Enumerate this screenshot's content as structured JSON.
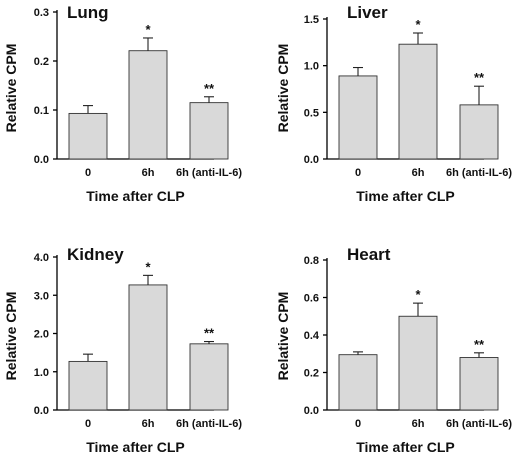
{
  "chart_data": [
    {
      "type": "bar",
      "title": "Lung",
      "xlabel": "Time after CLP",
      "ylabel": "Relative CPM",
      "categories": [
        "0",
        "6h",
        "6h (anti-IL-6)"
      ],
      "values": [
        0.093,
        0.221,
        0.115
      ],
      "errors": [
        0.016,
        0.026,
        0.012
      ],
      "annotations": [
        "",
        "*",
        "**"
      ],
      "ylim": [
        0,
        0.3
      ],
      "yticks": [
        0,
        0.1,
        0.2,
        0.3
      ],
      "ytick_labels": [
        "0.0",
        "0.1",
        "0.2",
        "0.3"
      ],
      "grid": false
    },
    {
      "type": "bar",
      "title": "Liver",
      "xlabel": "Time after CLP",
      "ylabel": "Relative CPM",
      "categories": [
        "0",
        "6h",
        "6h (anti-IL-6)"
      ],
      "values": [
        0.89,
        1.23,
        0.58
      ],
      "errors": [
        0.09,
        0.12,
        0.2
      ],
      "annotations": [
        "",
        "*",
        "**"
      ],
      "ylim": [
        0,
        1.5
      ],
      "yticks": [
        0,
        0.5,
        1.0,
        1.5
      ],
      "ytick_labels": [
        "0.0",
        "0.5",
        "1.0",
        "1.5"
      ],
      "grid": false
    },
    {
      "type": "bar",
      "title": "Kidney",
      "xlabel": "Time after CLP",
      "ylabel": "Relative CPM",
      "categories": [
        "0",
        "6h",
        "6h (anti-IL-6)"
      ],
      "values": [
        1.27,
        3.27,
        1.73
      ],
      "errors": [
        0.19,
        0.25,
        0.06
      ],
      "annotations": [
        "",
        "*",
        "**"
      ],
      "ylim": [
        0,
        4.0
      ],
      "yticks": [
        0,
        1.0,
        2.0,
        3.0,
        4.0
      ],
      "ytick_labels": [
        "0.0",
        "1.0",
        "2.0",
        "3.0",
        "4.0"
      ],
      "grid": false
    },
    {
      "type": "bar",
      "title": "Heart",
      "xlabel": "Time after CLP",
      "ylabel": "Relative CPM",
      "categories": [
        "0",
        "6h",
        "6h (anti-IL-6)"
      ],
      "values": [
        0.295,
        0.5,
        0.28
      ],
      "errors": [
        0.015,
        0.07,
        0.025
      ],
      "annotations": [
        "",
        "*",
        "**"
      ],
      "ylim": [
        0,
        0.8
      ],
      "yticks": [
        0,
        0.2,
        0.4,
        0.6,
        0.8
      ],
      "ytick_labels": [
        "0.0",
        "0.2",
        "0.4",
        "0.6",
        "0.8"
      ],
      "grid": false
    }
  ]
}
